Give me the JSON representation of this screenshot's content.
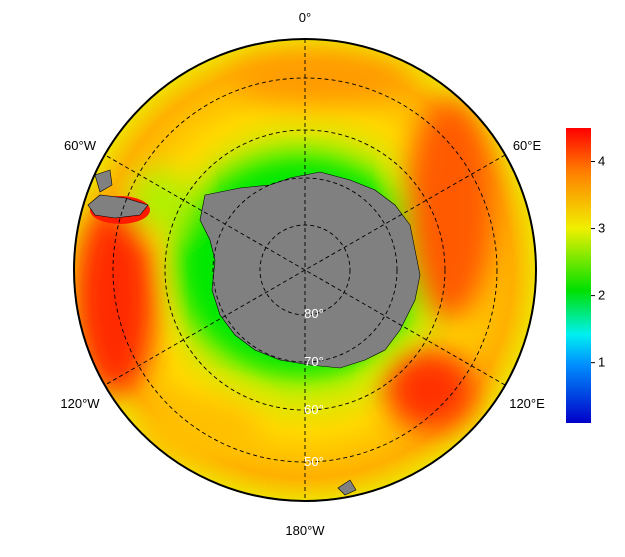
{
  "map": {
    "longitude_labels": [
      "0°",
      "60°E",
      "120°E",
      "180°W",
      "120°W",
      "60°W"
    ],
    "latitude_labels": [
      "80°",
      "70°",
      "60°",
      "50°"
    ],
    "colorbar": {
      "lim": [
        0.1,
        4.5
      ],
      "ticks": [
        1,
        2,
        3,
        4
      ]
    }
  }
}
